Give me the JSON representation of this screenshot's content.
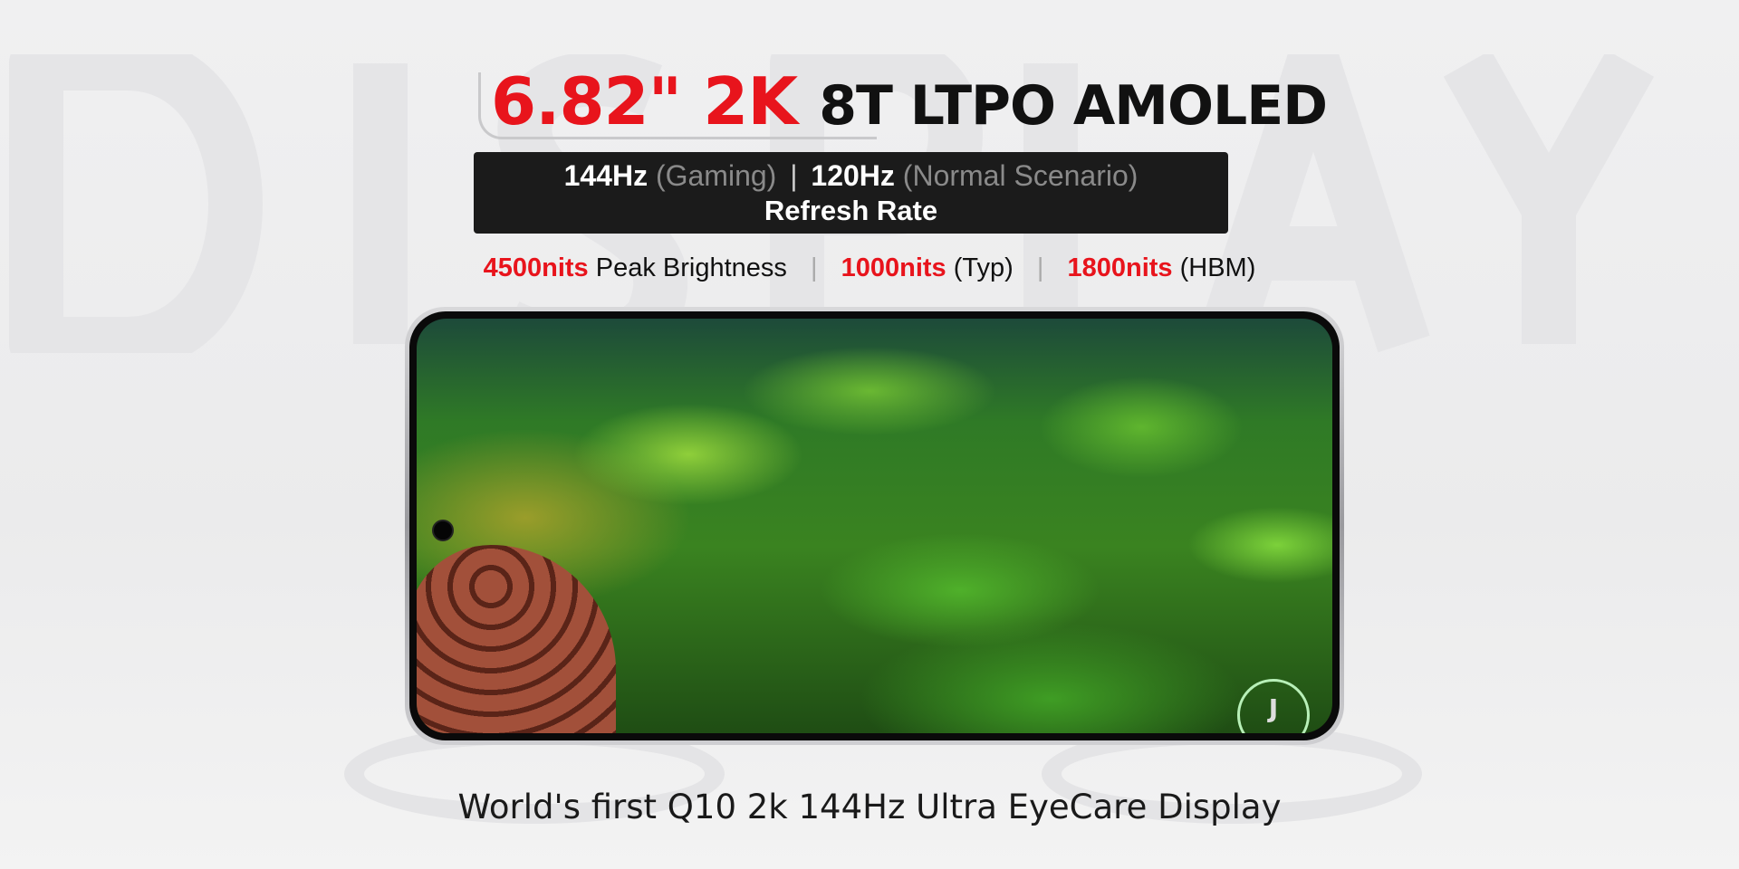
{
  "watermark": "DISPLAY",
  "title": {
    "size": "6.82\" 2K",
    "panel": "8T LTPO AMOLED"
  },
  "refresh": {
    "rate1": "144Hz",
    "mode1": "(Gaming)",
    "rate2": "120Hz",
    "mode2": "(Normal Scenario)",
    "label": "Refresh Rate"
  },
  "brightness": [
    {
      "value": "4500nits",
      "label": "Peak Brightness"
    },
    {
      "value": "1000nits",
      "label": "(Typ)"
    },
    {
      "value": "1800nits",
      "label": "(HBM)"
    }
  ],
  "logo": "J",
  "caption": "World's first Q10 2k 144Hz Ultra EyeCare Display",
  "colors": {
    "accent": "#e8141c",
    "box": "#1b1b1b"
  }
}
